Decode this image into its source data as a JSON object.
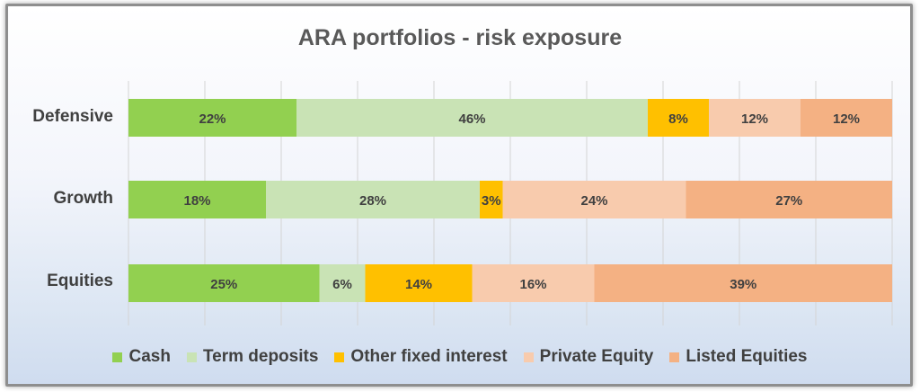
{
  "chart_data": {
    "type": "bar",
    "orientation": "horizontal",
    "stacked": true,
    "title": "ARA portfolios  - risk exposure",
    "categories": [
      "Defensive",
      "Growth",
      "Equities"
    ],
    "series": [
      {
        "name": "Cash",
        "color": "#92d050",
        "values": [
          22,
          18,
          25
        ],
        "labels": [
          "22%",
          "18%",
          "25%"
        ]
      },
      {
        "name": "Term deposits",
        "color": "#c9e3b5",
        "values": [
          46,
          28,
          6
        ],
        "labels": [
          "46%",
          "28%",
          "6%"
        ]
      },
      {
        "name": "Other fixed interest",
        "color": "#ffc000",
        "values": [
          8,
          3,
          14
        ],
        "labels": [
          "8%",
          "3%",
          "14%"
        ]
      },
      {
        "name": "Private Equity",
        "color": "#f8cbad",
        "values": [
          12,
          24,
          16
        ],
        "labels": [
          "12%",
          "24%",
          "16%"
        ]
      },
      {
        "name": "Listed Equities",
        "color": "#f4b183",
        "values": [
          12,
          27,
          39
        ],
        "labels": [
          "12%",
          "27%",
          "39%"
        ]
      }
    ],
    "xlim": [
      0,
      100
    ],
    "grid": true,
    "legend_position": "bottom"
  }
}
